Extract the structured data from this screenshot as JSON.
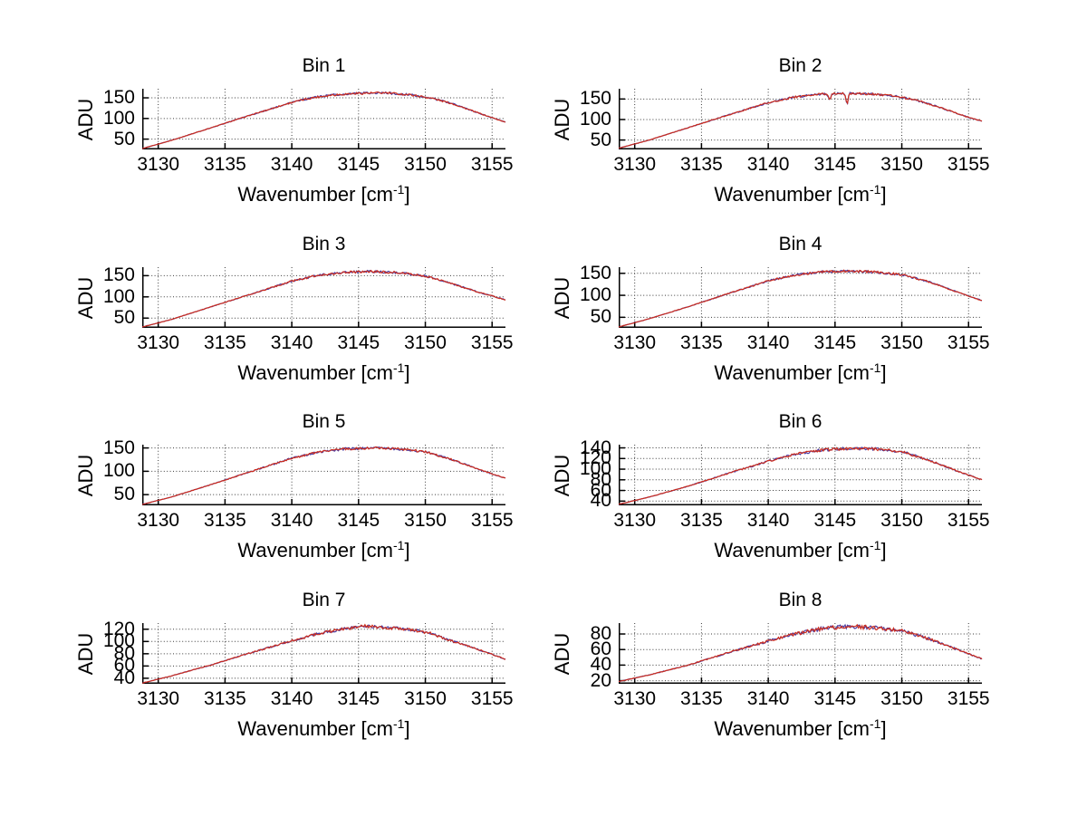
{
  "figure": {
    "background": "#ffffff",
    "text_color": "#000000",
    "line_color": "#cc2d1e",
    "underlay_line_color": "#4a3aa0",
    "grid_color": "#3a3a3a"
  },
  "xlabel_parts": {
    "pre": "Wavenumber [cm",
    "sup": "-1",
    "post": "]"
  },
  "chart_data": [
    {
      "type": "line",
      "title": "Bin 1",
      "ylabel": "ADU",
      "xlabel": "Wavenumber [cm^-1]",
      "grid": true,
      "legend": false,
      "xlim": [
        3128.8,
        3156
      ],
      "ylim": [
        25,
        172
      ],
      "xticks": [
        3130,
        3135,
        3140,
        3145,
        3150,
        3155
      ],
      "yticks": [
        50,
        100,
        150
      ],
      "points": [
        [
          3128.8,
          27
        ],
        [
          3131,
          47
        ],
        [
          3134,
          78
        ],
        [
          3137,
          109
        ],
        [
          3140,
          139
        ],
        [
          3141.5,
          150
        ],
        [
          3143,
          157
        ],
        [
          3145,
          161
        ],
        [
          3147,
          162
        ],
        [
          3149,
          157
        ],
        [
          3150.5,
          149
        ],
        [
          3152,
          136
        ],
        [
          3154,
          113
        ],
        [
          3156,
          91
        ]
      ],
      "spikes": []
    },
    {
      "type": "line",
      "title": "Bin 2",
      "ylabel": "ADU",
      "xlabel": "Wavenumber [cm^-1]",
      "grid": true,
      "legend": false,
      "xlim": [
        3128.8,
        3156
      ],
      "ylim": [
        27,
        175
      ],
      "xticks": [
        3130,
        3135,
        3140,
        3145,
        3150,
        3155
      ],
      "yticks": [
        50,
        100,
        150
      ],
      "points": [
        [
          3128.8,
          30
        ],
        [
          3131,
          49
        ],
        [
          3134,
          80
        ],
        [
          3137,
          111
        ],
        [
          3140,
          141
        ],
        [
          3142,
          155
        ],
        [
          3144,
          162
        ],
        [
          3146,
          164
        ],
        [
          3148,
          162
        ],
        [
          3149.5,
          157
        ],
        [
          3151,
          148
        ],
        [
          3153,
          128
        ],
        [
          3155,
          105
        ],
        [
          3156,
          96
        ]
      ],
      "spikes": [
        {
          "x": 3144.6,
          "depth": 13,
          "width": 0.12
        },
        {
          "x": 3145.9,
          "depth": 27,
          "width": 0.1
        }
      ]
    },
    {
      "type": "line",
      "title": "Bin 3",
      "ylabel": "ADU",
      "xlabel": "Wavenumber [cm^-1]",
      "grid": true,
      "legend": false,
      "xlim": [
        3128.8,
        3156
      ],
      "ylim": [
        27,
        170
      ],
      "xticks": [
        3130,
        3135,
        3140,
        3145,
        3150,
        3155
      ],
      "yticks": [
        50,
        100,
        150
      ],
      "points": [
        [
          3128.8,
          29
        ],
        [
          3131,
          47
        ],
        [
          3134,
          77
        ],
        [
          3137,
          107
        ],
        [
          3140,
          137
        ],
        [
          3142,
          151
        ],
        [
          3144,
          158
        ],
        [
          3146,
          160
        ],
        [
          3148,
          157
        ],
        [
          3150,
          149
        ],
        [
          3152,
          131
        ],
        [
          3154,
          111
        ],
        [
          3156,
          93
        ]
      ],
      "spikes": []
    },
    {
      "type": "line",
      "title": "Bin 4",
      "ylabel": "ADU",
      "xlabel": "Wavenumber [cm^-1]",
      "grid": true,
      "legend": false,
      "xlim": [
        3128.8,
        3156
      ],
      "ylim": [
        26,
        164
      ],
      "xticks": [
        3130,
        3135,
        3140,
        3145,
        3150,
        3155
      ],
      "yticks": [
        50,
        100,
        150
      ],
      "points": [
        [
          3128.8,
          28
        ],
        [
          3131,
          46
        ],
        [
          3134,
          74
        ],
        [
          3137,
          104
        ],
        [
          3140,
          133
        ],
        [
          3142,
          146
        ],
        [
          3144,
          153
        ],
        [
          3146,
          155
        ],
        [
          3148,
          153
        ],
        [
          3150,
          147
        ],
        [
          3152,
          131
        ],
        [
          3154,
          109
        ],
        [
          3156,
          88
        ]
      ],
      "spikes": []
    },
    {
      "type": "line",
      "title": "Bin 5",
      "ylabel": "ADU",
      "xlabel": "Wavenumber [cm^-1]",
      "grid": true,
      "legend": false,
      "xlim": [
        3128.8,
        3156
      ],
      "ylim": [
        27,
        157
      ],
      "xticks": [
        3130,
        3135,
        3140,
        3145,
        3150,
        3155
      ],
      "yticks": [
        50,
        100,
        150
      ],
      "points": [
        [
          3128.8,
          29
        ],
        [
          3131,
          45
        ],
        [
          3134,
          72
        ],
        [
          3137,
          100
        ],
        [
          3140,
          128
        ],
        [
          3142,
          141
        ],
        [
          3144,
          148
        ],
        [
          3146,
          150
        ],
        [
          3148,
          148
        ],
        [
          3150,
          142
        ],
        [
          3152,
          125
        ],
        [
          3154,
          104
        ],
        [
          3156,
          85
        ]
      ],
      "spikes": []
    },
    {
      "type": "line",
      "title": "Bin 6",
      "ylabel": "ADU",
      "xlabel": "Wavenumber [cm^-1]",
      "grid": true,
      "legend": false,
      "xlim": [
        3128.8,
        3156
      ],
      "ylim": [
        32,
        146
      ],
      "xticks": [
        3130,
        3135,
        3140,
        3145,
        3150,
        3155
      ],
      "yticks": [
        40,
        60,
        80,
        100,
        120,
        140
      ],
      "points": [
        [
          3128.8,
          34
        ],
        [
          3131,
          47
        ],
        [
          3134,
          68
        ],
        [
          3137,
          92
        ],
        [
          3140,
          115
        ],
        [
          3142,
          128
        ],
        [
          3144,
          136
        ],
        [
          3146,
          139
        ],
        [
          3148,
          138
        ],
        [
          3150,
          133
        ],
        [
          3152,
          117
        ],
        [
          3154,
          98
        ],
        [
          3156,
          80
        ]
      ],
      "spikes": []
    },
    {
      "type": "line",
      "title": "Bin 7",
      "ylabel": "ADU",
      "xlabel": "Wavenumber [cm^-1]",
      "grid": true,
      "legend": false,
      "xlim": [
        3128.8,
        3156
      ],
      "ylim": [
        31,
        130
      ],
      "xticks": [
        3130,
        3135,
        3140,
        3145,
        3150,
        3155
      ],
      "yticks": [
        40,
        60,
        80,
        100,
        120
      ],
      "points": [
        [
          3128.8,
          32
        ],
        [
          3131,
          44
        ],
        [
          3134,
          62
        ],
        [
          3137,
          82
        ],
        [
          3140,
          101
        ],
        [
          3142,
          113
        ],
        [
          3144,
          121
        ],
        [
          3145.5,
          125
        ],
        [
          3147,
          123
        ],
        [
          3149,
          119
        ],
        [
          3150.5,
          113
        ],
        [
          3151.5,
          104
        ],
        [
          3153,
          94
        ],
        [
          3154.5,
          83
        ],
        [
          3156,
          71
        ]
      ],
      "spikes": []
    },
    {
      "type": "line",
      "title": "Bin 8",
      "ylabel": "ADU",
      "xlabel": "Wavenumber [cm^-1]",
      "grid": true,
      "legend": false,
      "xlim": [
        3128.8,
        3156
      ],
      "ylim": [
        16,
        94
      ],
      "xticks": [
        3130,
        3135,
        3140,
        3145,
        3150,
        3155
      ],
      "yticks": [
        20,
        40,
        60,
        80
      ],
      "points": [
        [
          3128.8,
          19
        ],
        [
          3131,
          27
        ],
        [
          3134,
          40
        ],
        [
          3137,
          56
        ],
        [
          3140,
          71
        ],
        [
          3142,
          80
        ],
        [
          3144,
          87
        ],
        [
          3146,
          90
        ],
        [
          3148,
          88
        ],
        [
          3150,
          84
        ],
        [
          3152,
          74
        ],
        [
          3154,
          61
        ],
        [
          3156,
          48
        ]
      ],
      "spikes": []
    }
  ]
}
